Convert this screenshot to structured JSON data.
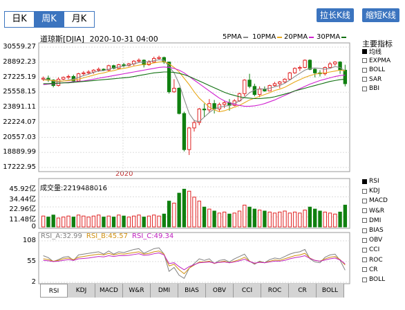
{
  "period_tabs": {
    "day": "日K",
    "week": "周K",
    "month": "月K"
  },
  "top_buttons": {
    "extend": "拉长K线",
    "shrink": "缩短K线"
  },
  "header": {
    "title": "道琼斯[DJIA]",
    "datetime": "2020-10-31 04:00"
  },
  "ma_legend": [
    {
      "label": "5PMA",
      "color": "#8a8a8a"
    },
    {
      "label": "10PMA",
      "color": "#e8a818"
    },
    {
      "label": "20PMA",
      "color": "#d020d0"
    },
    {
      "label": "30PMA",
      "color": "#107010"
    }
  ],
  "side_panel": {
    "main_title": "主要指标",
    "main_items": [
      {
        "label": "均线",
        "checked": true
      },
      {
        "label": "EXPMA",
        "checked": false
      },
      {
        "label": "BOLL",
        "checked": false
      },
      {
        "label": "SAR",
        "checked": false
      },
      {
        "label": "BBI",
        "checked": false
      }
    ],
    "sub_items": [
      {
        "label": "RSI",
        "checked": true
      },
      {
        "label": "KDJ",
        "checked": false
      },
      {
        "label": "MACD",
        "checked": false
      },
      {
        "label": "W&R",
        "checked": false
      },
      {
        "label": "DMI",
        "checked": false
      },
      {
        "label": "BIAS",
        "checked": false
      },
      {
        "label": "OBV",
        "checked": false
      },
      {
        "label": "CCI",
        "checked": false
      },
      {
        "label": "ROC",
        "checked": false
      },
      {
        "label": "CR",
        "checked": false
      },
      {
        "label": "BOLL",
        "checked": false
      }
    ]
  },
  "bottom_tabs": [
    "RSI",
    "KDJ",
    "MACD",
    "W&R",
    "DMI",
    "BIAS",
    "OBV",
    "CCI",
    "ROC",
    "CR",
    "BOLL"
  ],
  "volume_label": "成交量:2219488016",
  "rsi_legend": {
    "a": "RSI_A:32.99",
    "b": "RSI_B:45.57",
    "c": "RSI_C:49.34"
  },
  "colors": {
    "up": "#e02020",
    "down": "#108010",
    "accent": "#3b74bf"
  },
  "chart_data": {
    "type": "candlestick",
    "price_axis": {
      "ticks": [
        "30559.27",
        "28892.23",
        "27225.19",
        "25558.15",
        "23891.11",
        "22224.07",
        "20557.03",
        "18889.99",
        "17222.95"
      ],
      "min": 17222.95,
      "max": 30559.27
    },
    "x_label": "2020",
    "candles": [
      {
        "o": 27000,
        "h": 27300,
        "l": 26800,
        "c": 27100
      },
      {
        "o": 27100,
        "h": 27400,
        "l": 26700,
        "c": 26900
      },
      {
        "o": 26900,
        "h": 27000,
        "l": 26100,
        "c": 26300
      },
      {
        "o": 26300,
        "h": 27200,
        "l": 26200,
        "c": 27000
      },
      {
        "o": 27000,
        "h": 27300,
        "l": 26900,
        "c": 27200
      },
      {
        "o": 27200,
        "h": 27500,
        "l": 27000,
        "c": 27300
      },
      {
        "o": 27300,
        "h": 27500,
        "l": 26600,
        "c": 26800
      },
      {
        "o": 26800,
        "h": 27700,
        "l": 26700,
        "c": 27600
      },
      {
        "o": 27600,
        "h": 27900,
        "l": 27400,
        "c": 27700
      },
      {
        "o": 27700,
        "h": 28000,
        "l": 27500,
        "c": 27800
      },
      {
        "o": 27800,
        "h": 28100,
        "l": 27600,
        "c": 28000
      },
      {
        "o": 28000,
        "h": 28300,
        "l": 27800,
        "c": 28100
      },
      {
        "o": 28100,
        "h": 28200,
        "l": 27900,
        "c": 28000
      },
      {
        "o": 28000,
        "h": 28600,
        "l": 27900,
        "c": 28500
      },
      {
        "o": 28500,
        "h": 28600,
        "l": 28100,
        "c": 28200
      },
      {
        "o": 28200,
        "h": 28700,
        "l": 28100,
        "c": 28600
      },
      {
        "o": 28600,
        "h": 28800,
        "l": 28300,
        "c": 28500
      },
      {
        "o": 28500,
        "h": 28800,
        "l": 28400,
        "c": 28700
      },
      {
        "o": 28700,
        "h": 29100,
        "l": 28500,
        "c": 29000
      },
      {
        "o": 29000,
        "h": 29300,
        "l": 28800,
        "c": 29100
      },
      {
        "o": 29100,
        "h": 29200,
        "l": 28300,
        "c": 28600
      },
      {
        "o": 28600,
        "h": 29100,
        "l": 28500,
        "c": 28900
      },
      {
        "o": 28900,
        "h": 29500,
        "l": 28800,
        "c": 29300
      },
      {
        "o": 29300,
        "h": 29600,
        "l": 29100,
        "c": 29400
      },
      {
        "o": 29400,
        "h": 29500,
        "l": 28700,
        "c": 28900
      },
      {
        "o": 28900,
        "h": 28950,
        "l": 25400,
        "c": 25600
      },
      {
        "o": 25600,
        "h": 27000,
        "l": 25500,
        "c": 26000
      },
      {
        "o": 26000,
        "h": 26100,
        "l": 23100,
        "c": 23200
      },
      {
        "o": 23200,
        "h": 23400,
        "l": 19000,
        "c": 19200
      },
      {
        "o": 19200,
        "h": 21700,
        "l": 18600,
        "c": 21600
      },
      {
        "o": 21600,
        "h": 22500,
        "l": 21200,
        "c": 22200
      },
      {
        "o": 22200,
        "h": 23800,
        "l": 21900,
        "c": 23700
      },
      {
        "o": 23700,
        "h": 24300,
        "l": 22800,
        "c": 23600
      },
      {
        "o": 23600,
        "h": 24800,
        "l": 23300,
        "c": 24300
      },
      {
        "o": 24300,
        "h": 24700,
        "l": 23200,
        "c": 23700
      },
      {
        "o": 23700,
        "h": 24400,
        "l": 23400,
        "c": 24200
      },
      {
        "o": 24200,
        "h": 24600,
        "l": 23800,
        "c": 24400
      },
      {
        "o": 24400,
        "h": 24800,
        "l": 23500,
        "c": 24100
      },
      {
        "o": 24100,
        "h": 24800,
        "l": 24000,
        "c": 24600
      },
      {
        "o": 24600,
        "h": 25500,
        "l": 24500,
        "c": 25400
      },
      {
        "o": 25400,
        "h": 27000,
        "l": 25100,
        "c": 26900
      },
      {
        "o": 26900,
        "h": 27600,
        "l": 26000,
        "c": 26200
      },
      {
        "o": 26200,
        "h": 26500,
        "l": 25100,
        "c": 25300
      },
      {
        "o": 25300,
        "h": 26200,
        "l": 25000,
        "c": 25900
      },
      {
        "o": 25900,
        "h": 26200,
        "l": 25600,
        "c": 25700
      },
      {
        "o": 25700,
        "h": 26400,
        "l": 25700,
        "c": 26300
      },
      {
        "o": 26300,
        "h": 26700,
        "l": 26200,
        "c": 26500
      },
      {
        "o": 26500,
        "h": 26800,
        "l": 26000,
        "c": 26700
      },
      {
        "o": 26700,
        "h": 27100,
        "l": 26500,
        "c": 27000
      },
      {
        "o": 27000,
        "h": 27800,
        "l": 26900,
        "c": 27700
      },
      {
        "o": 27700,
        "h": 28300,
        "l": 27600,
        "c": 28200
      },
      {
        "o": 28200,
        "h": 28500,
        "l": 27900,
        "c": 28300
      },
      {
        "o": 28300,
        "h": 29200,
        "l": 28200,
        "c": 29100
      },
      {
        "o": 29100,
        "h": 29200,
        "l": 28000,
        "c": 28100
      },
      {
        "o": 28100,
        "h": 28200,
        "l": 27200,
        "c": 27700
      },
      {
        "o": 27700,
        "h": 28000,
        "l": 27300,
        "c": 27600
      },
      {
        "o": 27600,
        "h": 28400,
        "l": 27400,
        "c": 28300
      },
      {
        "o": 28300,
        "h": 28900,
        "l": 28200,
        "c": 28700
      },
      {
        "o": 28700,
        "h": 29000,
        "l": 28500,
        "c": 28900
      },
      {
        "o": 28900,
        "h": 29000,
        "l": 27600,
        "c": 28000
      },
      {
        "o": 28000,
        "h": 28600,
        "l": 26200,
        "c": 26500
      }
    ],
    "ma": {
      "5PMA": [
        27000,
        26950,
        26800,
        26700,
        26800,
        26900,
        27000,
        27200,
        27400,
        27550,
        27750,
        27900,
        27950,
        28100,
        28250,
        28350,
        28450,
        28550,
        28700,
        28850,
        28900,
        28950,
        29050,
        29150,
        29100,
        28400,
        27700,
        26500,
        24800,
        23200,
        22400,
        22300,
        22800,
        23300,
        23700,
        23900,
        24000,
        24100,
        24300,
        24600,
        25000,
        25500,
        25800,
        25950,
        25900,
        26000,
        26150,
        26300,
        26550,
        26900,
        27300,
        27650,
        28000,
        28200,
        28250,
        28200,
        28100,
        28200,
        28400,
        28300,
        27900
      ],
      "10PMA": [
        26900,
        26900,
        26850,
        26800,
        26800,
        26850,
        26900,
        27000,
        27150,
        27300,
        27450,
        27600,
        27700,
        27850,
        27950,
        28100,
        28200,
        28300,
        28450,
        28550,
        28650,
        28700,
        28800,
        28900,
        28950,
        28700,
        28300,
        27800,
        27100,
        26400,
        25600,
        24900,
        24400,
        23900,
        23600,
        23400,
        23500,
        23700,
        23900,
        24100,
        24400,
        24700,
        24900,
        25100,
        25300,
        25500,
        25750,
        25900,
        26100,
        26400,
        26700,
        26950,
        27200,
        27400,
        27550,
        27650,
        27700,
        27800,
        27900,
        28000,
        27950
      ],
      "20PMA": [
        26400,
        26450,
        26500,
        26550,
        26600,
        26650,
        26700,
        26750,
        26800,
        26900,
        27000,
        27100,
        27200,
        27300,
        27400,
        27500,
        27600,
        27700,
        27800,
        27900,
        28000,
        28100,
        28200,
        28300,
        28350,
        28300,
        28200,
        28000,
        27700,
        27300,
        26900,
        26500,
        26100,
        25700,
        25300,
        24900,
        24600,
        24400,
        24200,
        24100,
        24000,
        24000,
        24050,
        24150,
        24300,
        24500,
        24700,
        24950,
        25200,
        25450,
        25700,
        25950,
        26200,
        26450,
        26650,
        26850,
        27000,
        27150,
        27300,
        27400,
        27450
      ],
      "30PMA": [
        26500,
        26500,
        26550,
        26550,
        26600,
        26600,
        26650,
        26700,
        26750,
        26800,
        26850,
        26900,
        26950,
        27000,
        27050,
        27100,
        27150,
        27200,
        27300,
        27400,
        27500,
        27600,
        27700,
        27750,
        27800,
        27800,
        27750,
        27650,
        27500,
        27300,
        27050,
        26800,
        26550,
        26300,
        26050,
        25800,
        25550,
        25350,
        25200,
        25050,
        24950,
        24900,
        24850,
        24850,
        24900,
        24950,
        25050,
        25200,
        25350,
        25500,
        25700,
        25850,
        26000,
        26150,
        26300,
        26450,
        26600,
        26750,
        26850,
        26950,
        27000
      ]
    },
    "volume": {
      "axis_ticks": [
        "45.92亿",
        "34.44亿",
        "22.96亿",
        "11.48亿",
        "0"
      ],
      "max": 45.92,
      "values": [
        11,
        10,
        12,
        9,
        10,
        11,
        10,
        12,
        11,
        10,
        11,
        12,
        10,
        11,
        10,
        12,
        11,
        10,
        11,
        12,
        10,
        11,
        12,
        11,
        13,
        26,
        24,
        34,
        38,
        36,
        30,
        26,
        20,
        18,
        16,
        14,
        15,
        13,
        14,
        16,
        22,
        20,
        18,
        17,
        16,
        15,
        14,
        15,
        16,
        14,
        15,
        14,
        17,
        20,
        18,
        16,
        15,
        14,
        13,
        15,
        22
      ]
    },
    "rsi": {
      "axis_ticks": [
        "108",
        "55",
        "2"
      ],
      "min": 2,
      "max": 108,
      "rsi_a": [
        70,
        65,
        55,
        60,
        66,
        68,
        58,
        72,
        74,
        76,
        78,
        80,
        74,
        82,
        74,
        80,
        78,
        82,
        86,
        88,
        76,
        82,
        88,
        90,
        74,
        30,
        40,
        20,
        12,
        38,
        50,
        62,
        58,
        62,
        50,
        58,
        60,
        54,
        62,
        68,
        74,
        56,
        48,
        56,
        52,
        60,
        64,
        62,
        68,
        74,
        78,
        80,
        86,
        62,
        54,
        52,
        66,
        72,
        74,
        58,
        33
      ],
      "rsi_b": [
        62,
        60,
        56,
        58,
        62,
        64,
        60,
        66,
        68,
        70,
        72,
        74,
        72,
        76,
        72,
        75,
        74,
        76,
        78,
        80,
        74,
        76,
        80,
        82,
        74,
        44,
        48,
        34,
        24,
        38,
        46,
        54,
        54,
        56,
        50,
        54,
        56,
        52,
        56,
        60,
        66,
        56,
        50,
        54,
        52,
        56,
        59,
        58,
        62,
        66,
        70,
        72,
        76,
        64,
        58,
        56,
        62,
        66,
        68,
        60,
        46
      ],
      "rsi_c": [
        58,
        57,
        55,
        56,
        58,
        60,
        58,
        62,
        63,
        64,
        66,
        68,
        67,
        70,
        68,
        70,
        70,
        71,
        73,
        75,
        71,
        72,
        75,
        77,
        72,
        50,
        52,
        42,
        34,
        42,
        47,
        52,
        53,
        54,
        51,
        53,
        54,
        52,
        54,
        57,
        61,
        55,
        51,
        53,
        52,
        54,
        56,
        56,
        58,
        62,
        65,
        67,
        70,
        63,
        58,
        56,
        59,
        62,
        64,
        59,
        49
      ]
    }
  }
}
